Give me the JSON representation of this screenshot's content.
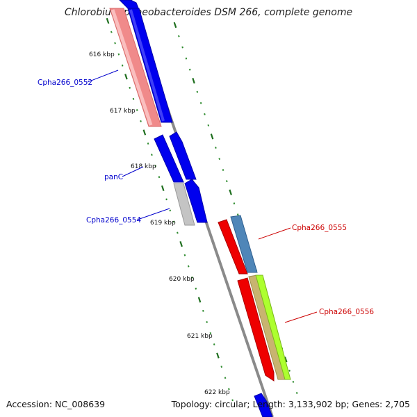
{
  "title": "Chlorobium phaeobacteroides DSM 266, complete genome",
  "footer": {
    "accession": "Accession: NC_008639",
    "summary": "Topology: circular; Length: 3,133,902 bp; Genes: 2,705"
  },
  "colors": {
    "backbone": "#888888",
    "minor_tick": "#2e8b2e",
    "major_tick": "#1f6f1f",
    "label_blue": "#0000cc",
    "label_red": "#cc0000"
  },
  "ticks": [
    "616 kbp",
    "617 kbp",
    "618 kbp",
    "619 kbp",
    "620 kbp",
    "621 kbp",
    "622 kbp"
  ],
  "genes": [
    {
      "label": "",
      "strand": "minus",
      "color": "#f08080",
      "name": "pink-gene-bar"
    },
    {
      "label": "Cpha266_0552",
      "strand": "minus",
      "color": "#0000ee",
      "label_color": "#0000cc"
    },
    {
      "label": "panC",
      "strand": "minus",
      "color": "#0000ee",
      "label_color": "#0000cc"
    },
    {
      "label": "",
      "strand": "minus",
      "color": "#0000ee",
      "name": "blue-gene-small"
    },
    {
      "label": "Cpha266_0554",
      "strand": "minus",
      "color": "#c0c0c0",
      "label_color": "#0000cc"
    },
    {
      "label": "",
      "strand": "minus",
      "color": "#0000ee",
      "name": "blue-gene-small-2"
    },
    {
      "label": "Cpha266_0555",
      "strand": "plus",
      "color": "#4682b4",
      "label_color": "#cc0000"
    },
    {
      "label": "",
      "strand": "plus",
      "color": "#ee0000",
      "name": "red-gene-a"
    },
    {
      "label": "",
      "strand": "plus",
      "color": "#ee0000",
      "name": "red-gene-b"
    },
    {
      "label": "Cpha266_0556",
      "strand": "plus",
      "color": "#adff2f",
      "label_color": "#cc0000"
    },
    {
      "label": "",
      "strand": "plus",
      "color": "#bdb76b",
      "name": "khaki-gene"
    }
  ]
}
